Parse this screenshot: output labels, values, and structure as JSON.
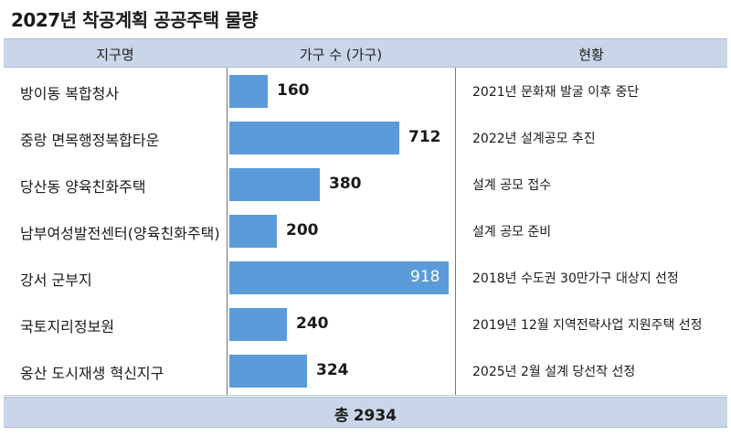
{
  "title": "2027년 착공계획 공공주택 물량",
  "header": {
    "col_name": "지구명",
    "col_count": "가구 수 (가구)",
    "col_status": "현황"
  },
  "rows": [
    {
      "name": "방이동 복합청사",
      "status": "2021년 문화재 발굴 이후 중단"
    },
    {
      "name": "중랑 면목행정복합타운",
      "status": "2022년 설계공모 추진"
    },
    {
      "name": "당산동 양육친화주택",
      "status": "설계 공모 접수"
    },
    {
      "name": "남부여성발전센터(양육친화주택)",
      "status": "설계 공모 준비"
    },
    {
      "name": "강서 군부지",
      "status": "2018년 수도권 30만가구 대상지 선정"
    },
    {
      "name": "국토지리정보원",
      "status": "2019년 12월 지역전략사업 지원주택 선정"
    },
    {
      "name": "옹산 도시재생 혁신지구",
      "status": "2025년 2월 설계 당선작 선정"
    }
  ],
  "footer": {
    "label": "총",
    "total": "2934"
  },
  "chart_data": {
    "type": "bar",
    "orientation": "horizontal",
    "title": "2027년 착공계획 공공주택 물량",
    "categories": [
      "방이동 복합청사",
      "중랑 면목행정복합타운",
      "당산동 양육친화주택",
      "남부여성발전센터(양육친화주택)",
      "강서 군부지",
      "국토지리정보원",
      "옹산 도시재생 혁신지구"
    ],
    "values": [
      160,
      712,
      380,
      200,
      918,
      240,
      324
    ],
    "xlabel": "가구 수 (가구)",
    "bar_color": "#5b9bd9"
  }
}
